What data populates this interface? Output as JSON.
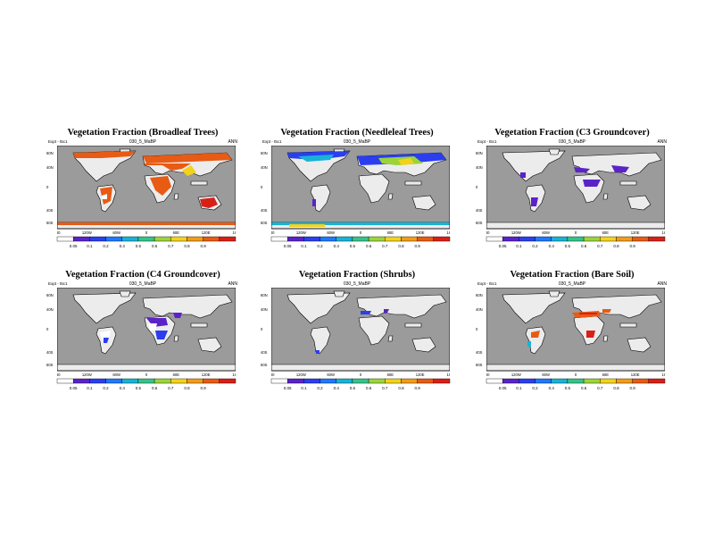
{
  "colorbar_colors": [
    "#ffffff",
    "#5a23c8",
    "#2a3ef0",
    "#1f78ff",
    "#17b4d6",
    "#35c38a",
    "#9bd43a",
    "#f3d21a",
    "#f39b1a",
    "#e85b14",
    "#d92018"
  ],
  "colorbar_labels": [
    "0.05",
    "0.1",
    "0.2",
    "0.4",
    "0.5",
    "0.6",
    "0.7",
    "0.8",
    "0.9"
  ],
  "ocean_color": "#9b9b9b",
  "land_color": "#ececec",
  "panels": [
    {
      "title": "Vegetation Fraction (Broadleaf Trees)",
      "case": "030_5_MaBP",
      "left": "Expt - t5c1",
      "right": "ANN",
      "xticks": [
        "180",
        "120W",
        "60W",
        "0",
        "60E",
        "120E",
        "180"
      ],
      "yticks": [
        "60N",
        "40N",
        "0",
        "40S",
        "60S"
      ]
    },
    {
      "title": "Vegetation Fraction (Needleleaf Trees)",
      "case": "030_5_MaBP",
      "left": "Expt - t5c1",
      "right": "",
      "xticks": [
        "180",
        "120W",
        "60W",
        "0",
        "60E",
        "120E",
        "180"
      ],
      "yticks": [
        "60N",
        "40N",
        "0",
        "40S",
        "60S"
      ]
    },
    {
      "title": "Vegetation Fraction (C3 Groundcover)",
      "case": "030_5_MaBP",
      "left": "Expt - t5c1",
      "right": "ANN",
      "xticks": [
        "180",
        "120W",
        "60W",
        "0",
        "60E",
        "120E",
        "180"
      ],
      "yticks": [
        "60N",
        "40N",
        "0",
        "40S",
        "60S"
      ]
    },
    {
      "title": "Vegetation Fraction (C4 Groundcover)",
      "case": "030_5_MaBP",
      "left": "Expt - t5c1",
      "right": "ANN",
      "xticks": [
        "180",
        "120W",
        "60W",
        "0",
        "60E",
        "120E",
        "180"
      ],
      "yticks": [
        "60N",
        "40N",
        "0",
        "40S",
        "60S"
      ]
    },
    {
      "title": "Vegetation Fraction (Shrubs)",
      "case": "030_5_MaBP",
      "left": "",
      "right": "",
      "xticks": [
        "180",
        "120W",
        "60W",
        "0",
        "60E",
        "120E",
        "180"
      ],
      "yticks": [
        "60N",
        "40N",
        "0",
        "40S",
        "60S"
      ]
    },
    {
      "title": "Vegetation Fraction (Bare Soil)",
      "case": "030_5_MaBP",
      "left": "Expt - t5c1",
      "right": "ANN",
      "xticks": [
        "180",
        "120W",
        "60W",
        "0",
        "60E",
        "120E",
        "180"
      ],
      "yticks": [
        "60N",
        "40N",
        "0",
        "40S",
        "60S"
      ]
    }
  ],
  "chart_data": [
    {
      "type": "heatmap",
      "title": "Vegetation Fraction (Broadleaf Trees)",
      "color_scale": [
        0.05,
        0.1,
        0.2,
        0.4,
        0.5,
        0.6,
        0.7,
        0.8,
        0.9
      ]
    },
    {
      "type": "heatmap",
      "title": "Vegetation Fraction (Needleleaf Trees)",
      "color_scale": [
        0.05,
        0.1,
        0.2,
        0.4,
        0.5,
        0.6,
        0.7,
        0.8,
        0.9
      ]
    },
    {
      "type": "heatmap",
      "title": "Vegetation Fraction (C3 Groundcover)",
      "color_scale": [
        0.05,
        0.1,
        0.2,
        0.4,
        0.5,
        0.6,
        0.7,
        0.8,
        0.9
      ]
    },
    {
      "type": "heatmap",
      "title": "Vegetation Fraction (C4 Groundcover)",
      "color_scale": [
        0.05,
        0.1,
        0.2,
        0.4,
        0.5,
        0.6,
        0.7,
        0.8,
        0.9
      ]
    },
    {
      "type": "heatmap",
      "title": "Vegetation Fraction (Shrubs)",
      "color_scale": [
        0.05,
        0.1,
        0.2,
        0.4,
        0.5,
        0.6,
        0.7,
        0.8,
        0.9
      ]
    },
    {
      "type": "heatmap",
      "title": "Vegetation Fraction (Bare Soil)",
      "color_scale": [
        0.05,
        0.1,
        0.2,
        0.4,
        0.5,
        0.6,
        0.7,
        0.8,
        0.9
      ]
    }
  ]
}
